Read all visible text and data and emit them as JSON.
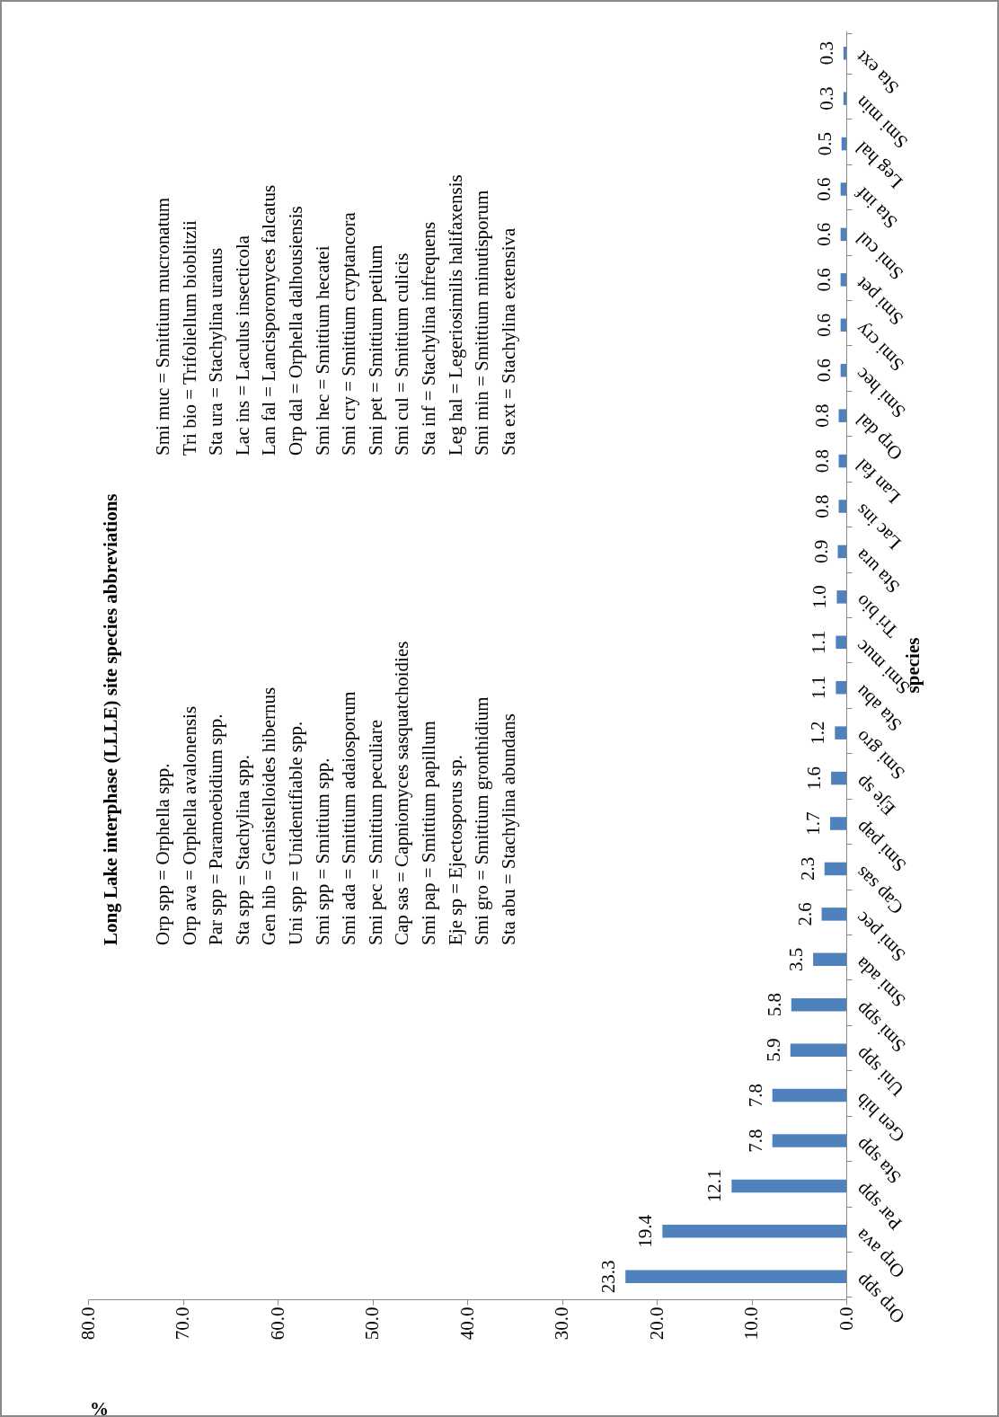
{
  "chart_data": {
    "type": "bar",
    "orientation": "horizontal",
    "title": "Long Lake interphase (LLLE) site species abbreviations",
    "xlabel": "%",
    "ylabel": "species",
    "categories": [
      "Sta ext",
      "Smi min",
      "Leg hal",
      "Sta inf",
      "Smi cul",
      "Smi pet",
      "Smi cry",
      "Smi hec",
      "Orp dal",
      "Lan fal",
      "Lac ins",
      "Sta ura",
      "Tri bio",
      "Smi muc",
      "Sta abu",
      "Smi gro",
      "Eje sp",
      "Smi pap",
      "Cap sas",
      "Smi pec",
      "Smi ada",
      "Smi spp",
      "Uni spp",
      "Gen hib",
      "Sta spp",
      "Par spp",
      "Orp ava",
      "Orp spp"
    ],
    "values": [
      0.3,
      0.3,
      0.5,
      0.6,
      0.6,
      0.6,
      0.6,
      0.6,
      0.8,
      0.8,
      0.8,
      0.9,
      1.0,
      1.1,
      1.1,
      1.2,
      1.6,
      1.7,
      2.3,
      2.6,
      3.5,
      5.8,
      5.9,
      7.8,
      7.8,
      12.1,
      19.4,
      23.3
    ],
    "value_labels": [
      "0.3",
      "0.3",
      "0.5",
      "0.6",
      "0.6",
      "0.6",
      "0.6",
      "0.6",
      "0.8",
      "0.8",
      "0.8",
      "0.9",
      "1.0",
      "1.1",
      "1.1",
      "1.2",
      "1.6",
      "1.7",
      "2.3",
      "2.6",
      "3.5",
      "5.8",
      "5.9",
      "7.8",
      "7.8",
      "12.1",
      "19.4",
      "23.3"
    ],
    "color": "#4f81bd",
    "grid": false,
    "xlim": [
      80,
      0
    ],
    "xticks": [
      {
        "value": 80,
        "label": "80.0"
      },
      {
        "value": 70,
        "label": "70.0"
      },
      {
        "value": 60,
        "label": "60.0"
      },
      {
        "value": 50,
        "label": "50.0"
      },
      {
        "value": 40,
        "label": "40.0"
      },
      {
        "value": 30,
        "label": "30.0"
      },
      {
        "value": 20,
        "label": "20.0"
      },
      {
        "value": 10,
        "label": "10.0"
      },
      {
        "value": 0,
        "label": "0.0"
      }
    ],
    "annotations": [
      "Orp spp = Orphella spp.",
      "Orp ava = Orphella avalonensis",
      "Par spp = Paramoebidium spp.",
      "Sta spp = Stachylina spp.",
      "Gen hib = Genistelloides hibernus",
      "Uni spp = Unidentifiable spp.",
      "Smi spp = Smittium spp.",
      "Smi ada = Smittium adaiosporum",
      "Smi pec = Smittium peculiare",
      "Cap sas = Capniomyces sasquatchoidies",
      "Smi pap = Smittium papillum",
      "Eje sp = Ejectosporus sp.",
      "Smi gro = Smittium gronthidium",
      "Sta abu = Stachylina abundans",
      "Smi muc = Smittium mucronatum",
      "Tri bio = Trifoliellum bioblitzii",
      "Sta ura = Stachylina uranus",
      "Lac ins = Laculus insecticola",
      "Lan fal = Lancisporomyces falcatus",
      "Orp dal = Orphella dalhousiensis",
      "Smi hec = Smittium hecatei",
      "Smi cry = Smittium cryptancora",
      "Smi pet = Smittium petilum",
      "Smi cul = Smittium culicis",
      "Sta inf = Stachylina infrequens",
      "Leg hal = Legeriosimilis halifaxensis",
      "Smi min = Smittium minutisporum",
      "Sta ext = Stachylina extensiva"
    ]
  }
}
